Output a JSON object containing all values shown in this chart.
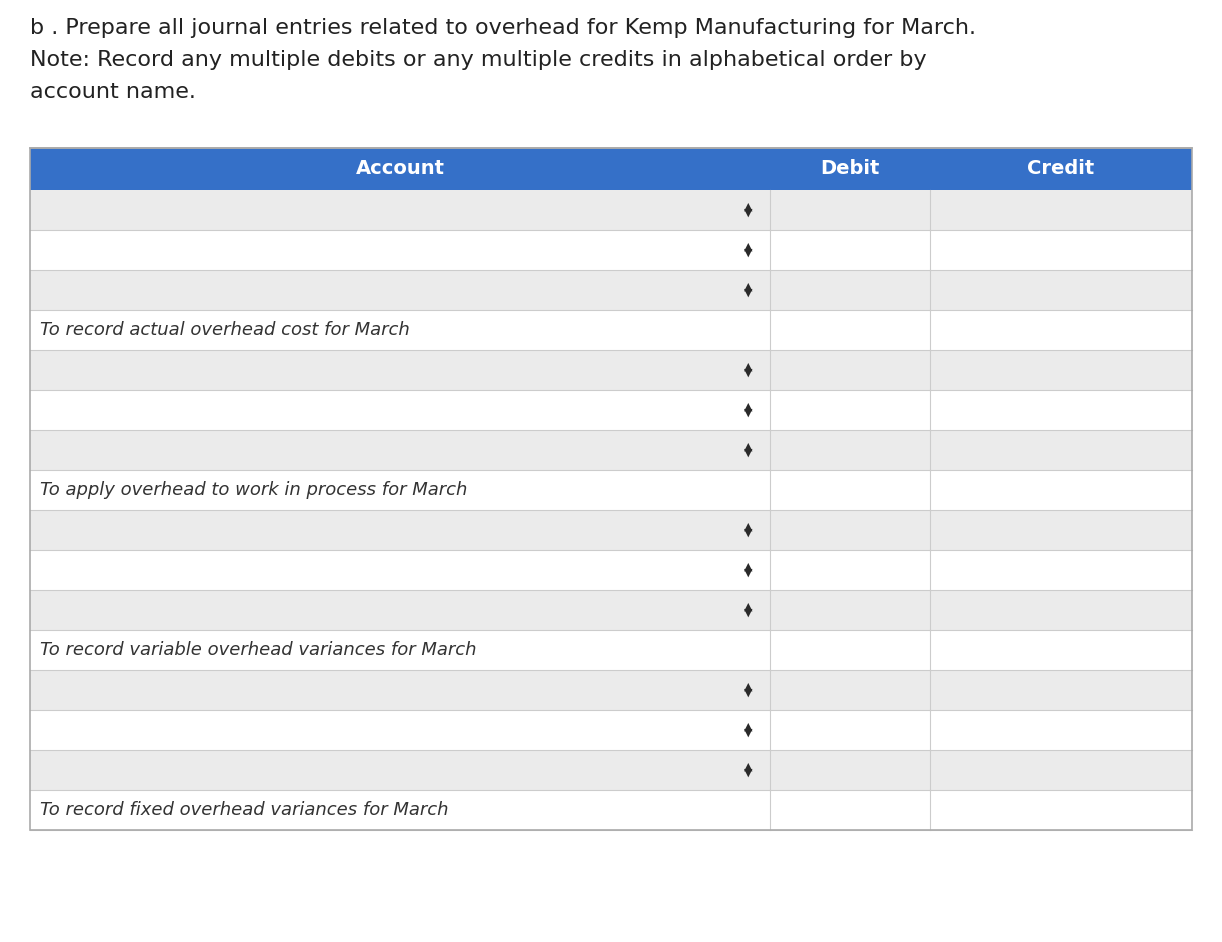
{
  "title_line1": "b . Prepare all journal entries related to overhead for Kemp Manufacturing for March.",
  "title_line2": "Note: Record any multiple debits or any multiple credits in alphabetical order by",
  "title_line3": "account name.",
  "header_bg_color": "#3570C8",
  "header_text_color": "#FFFFFF",
  "header_labels": [
    "Account",
    "Debit",
    "Credit"
  ],
  "row_shade_color": "#EBEBEB",
  "row_white_color": "#FFFFFF",
  "border_color": "#CCCCCC",
  "text_color": "#222222",
  "note_text_color": "#333333",
  "title_font_size": 16,
  "header_font_size": 14,
  "note_font_size": 13,
  "arrow_font_size": 11,
  "background_color": "#FFFFFF",
  "rows": [
    {
      "type": "input",
      "shade": true
    },
    {
      "type": "input",
      "shade": false
    },
    {
      "type": "input",
      "shade": true
    },
    {
      "type": "note",
      "text": "To record actual overhead cost for March"
    },
    {
      "type": "input",
      "shade": true
    },
    {
      "type": "input",
      "shade": false
    },
    {
      "type": "input",
      "shade": true
    },
    {
      "type": "note",
      "text": "To apply overhead to work in process for March"
    },
    {
      "type": "input",
      "shade": true
    },
    {
      "type": "input",
      "shade": false
    },
    {
      "type": "input",
      "shade": true
    },
    {
      "type": "note",
      "text": "To record variable overhead variances for March"
    },
    {
      "type": "input",
      "shade": true
    },
    {
      "type": "input",
      "shade": false
    },
    {
      "type": "input",
      "shade": true
    },
    {
      "type": "note",
      "text": "To record fixed overhead variances for March"
    }
  ]
}
